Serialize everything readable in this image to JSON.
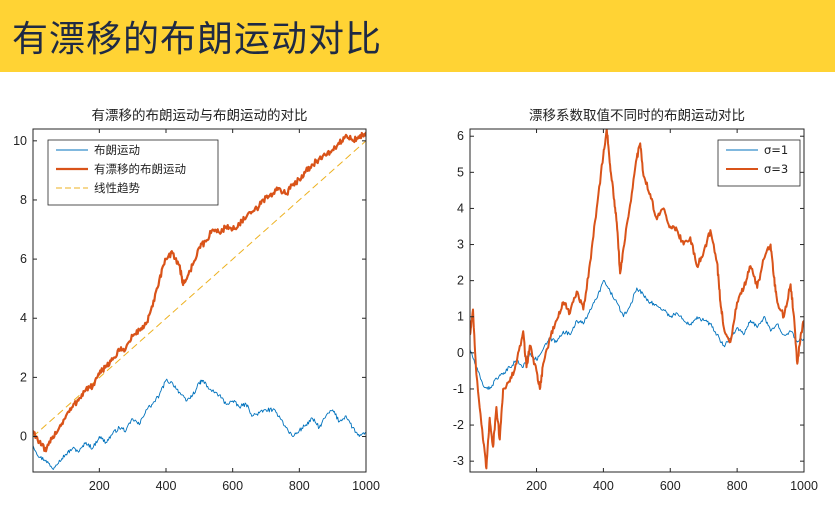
{
  "slide": {
    "title": "有漂移的布朗运动对比"
  },
  "chart_data": [
    {
      "type": "line",
      "title": "有漂移的布朗运动与布朗运动的对比",
      "xlabel": "",
      "ylabel": "",
      "xlim": [
        1,
        1000
      ],
      "ylim": [
        -1.2,
        10.4
      ],
      "xticks": [
        200,
        400,
        600,
        800,
        1000
      ],
      "yticks": [
        0,
        2,
        4,
        6,
        8,
        10
      ],
      "legend": "top-left",
      "grid": false,
      "series": [
        {
          "name": "布朗运动",
          "color": "#0072bd",
          "width": 0.9,
          "points": [
            [
              1,
              -0.3
            ],
            [
              20,
              -0.7
            ],
            [
              40,
              -0.8
            ],
            [
              60,
              -1.1
            ],
            [
              80,
              -0.8
            ],
            [
              100,
              -0.6
            ],
            [
              120,
              -0.4
            ],
            [
              140,
              -0.5
            ],
            [
              160,
              -0.2
            ],
            [
              180,
              -0.4
            ],
            [
              200,
              0.0
            ],
            [
              220,
              -0.2
            ],
            [
              240,
              0.1
            ],
            [
              260,
              0.3
            ],
            [
              280,
              0.2
            ],
            [
              300,
              0.6
            ],
            [
              320,
              0.4
            ],
            [
              340,
              0.9
            ],
            [
              360,
              1.1
            ],
            [
              380,
              1.4
            ],
            [
              400,
              1.9
            ],
            [
              420,
              1.8
            ],
            [
              440,
              1.5
            ],
            [
              460,
              1.2
            ],
            [
              480,
              1.4
            ],
            [
              500,
              1.8
            ],
            [
              510,
              1.9
            ],
            [
              530,
              1.6
            ],
            [
              560,
              1.4
            ],
            [
              580,
              1.1
            ],
            [
              600,
              1.2
            ],
            [
              620,
              1.0
            ],
            [
              640,
              1.1
            ],
            [
              660,
              0.7
            ],
            [
              680,
              0.8
            ],
            [
              700,
              0.9
            ],
            [
              720,
              0.9
            ],
            [
              740,
              0.7
            ],
            [
              760,
              0.3
            ],
            [
              780,
              0.0
            ],
            [
              800,
              0.2
            ],
            [
              820,
              0.4
            ],
            [
              840,
              0.6
            ],
            [
              860,
              0.3
            ],
            [
              880,
              0.7
            ],
            [
              900,
              0.9
            ],
            [
              920,
              0.5
            ],
            [
              940,
              0.7
            ],
            [
              960,
              0.3
            ],
            [
              980,
              0.0
            ],
            [
              1000,
              0.1
            ]
          ]
        },
        {
          "name": "有漂移的布朗运动",
          "color": "#d95319",
          "width": 2.2,
          "points": [
            [
              1,
              0.2
            ],
            [
              20,
              -0.2
            ],
            [
              40,
              -0.5
            ],
            [
              60,
              0.0
            ],
            [
              80,
              0.3
            ],
            [
              100,
              0.7
            ],
            [
              120,
              1.0
            ],
            [
              140,
              1.3
            ],
            [
              160,
              1.6
            ],
            [
              180,
              1.7
            ],
            [
              200,
              2.1
            ],
            [
              220,
              2.4
            ],
            [
              240,
              2.6
            ],
            [
              260,
              2.9
            ],
            [
              280,
              3.0
            ],
            [
              300,
              3.4
            ],
            [
              320,
              3.6
            ],
            [
              340,
              3.8
            ],
            [
              360,
              4.4
            ],
            [
              380,
              5.3
            ],
            [
              400,
              6.0
            ],
            [
              420,
              6.2
            ],
            [
              440,
              5.8
            ],
            [
              450,
              5.2
            ],
            [
              460,
              5.3
            ],
            [
              480,
              5.8
            ],
            [
              500,
              6.4
            ],
            [
              520,
              6.6
            ],
            [
              540,
              7.0
            ],
            [
              560,
              6.9
            ],
            [
              580,
              7.1
            ],
            [
              600,
              7.0
            ],
            [
              620,
              7.2
            ],
            [
              640,
              7.4
            ],
            [
              660,
              7.6
            ],
            [
              680,
              7.8
            ],
            [
              700,
              8.1
            ],
            [
              720,
              8.2
            ],
            [
              740,
              8.4
            ],
            [
              760,
              8.2
            ],
            [
              780,
              8.5
            ],
            [
              800,
              8.7
            ],
            [
              820,
              9.0
            ],
            [
              840,
              9.2
            ],
            [
              860,
              9.4
            ],
            [
              880,
              9.5
            ],
            [
              900,
              9.7
            ],
            [
              920,
              9.9
            ],
            [
              940,
              10.2
            ],
            [
              960,
              10.0
            ],
            [
              980,
              10.1
            ],
            [
              1000,
              10.3
            ]
          ]
        },
        {
          "name": "线性趋势",
          "color": "#edb120",
          "width": 1.0,
          "dash": true,
          "points": [
            [
              1,
              0.0
            ],
            [
              1000,
              10.0
            ]
          ]
        }
      ]
    },
    {
      "type": "line",
      "title": "漂移系数取值不同时的布朗运动对比",
      "xlabel": "",
      "ylabel": "",
      "xlim": [
        1,
        1000
      ],
      "ylim": [
        -3.3,
        6.2
      ],
      "xticks": [
        200,
        400,
        600,
        800,
        1000
      ],
      "yticks": [
        -3,
        -2,
        -1,
        0,
        1,
        2,
        3,
        4,
        5,
        6
      ],
      "legend": "top-right",
      "grid": false,
      "series": [
        {
          "name": "σ=1",
          "color": "#0072bd",
          "width": 0.9,
          "points": [
            [
              1,
              0.1
            ],
            [
              20,
              -0.4
            ],
            [
              40,
              -0.9
            ],
            [
              60,
              -1.0
            ],
            [
              80,
              -0.7
            ],
            [
              100,
              -0.6
            ],
            [
              120,
              -0.4
            ],
            [
              140,
              -0.2
            ],
            [
              160,
              -0.4
            ],
            [
              180,
              0.0
            ],
            [
              200,
              -0.2
            ],
            [
              220,
              0.1
            ],
            [
              240,
              0.4
            ],
            [
              260,
              0.3
            ],
            [
              280,
              0.6
            ],
            [
              300,
              0.5
            ],
            [
              320,
              0.9
            ],
            [
              340,
              0.8
            ],
            [
              360,
              1.2
            ],
            [
              380,
              1.5
            ],
            [
              400,
              2.0
            ],
            [
              420,
              1.7
            ],
            [
              440,
              1.4
            ],
            [
              460,
              1.0
            ],
            [
              480,
              1.3
            ],
            [
              500,
              1.8
            ],
            [
              520,
              1.6
            ],
            [
              540,
              1.4
            ],
            [
              560,
              1.3
            ],
            [
              580,
              1.2
            ],
            [
              600,
              1.0
            ],
            [
              620,
              1.1
            ],
            [
              640,
              0.9
            ],
            [
              660,
              0.8
            ],
            [
              680,
              1.0
            ],
            [
              700,
              0.9
            ],
            [
              720,
              0.8
            ],
            [
              740,
              0.5
            ],
            [
              760,
              0.2
            ],
            [
              780,
              0.4
            ],
            [
              800,
              0.7
            ],
            [
              820,
              0.5
            ],
            [
              840,
              0.9
            ],
            [
              860,
              0.7
            ],
            [
              880,
              1.0
            ],
            [
              900,
              0.6
            ],
            [
              920,
              0.8
            ],
            [
              940,
              0.5
            ],
            [
              960,
              0.6
            ],
            [
              980,
              0.3
            ],
            [
              1000,
              0.4
            ]
          ]
        },
        {
          "name": "σ=3",
          "color": "#d95319",
          "width": 2.0,
          "points": [
            [
              1,
              0.5
            ],
            [
              10,
              1.2
            ],
            [
              20,
              -0.6
            ],
            [
              40,
              -2.4
            ],
            [
              50,
              -3.2
            ],
            [
              60,
              -1.8
            ],
            [
              70,
              -2.6
            ],
            [
              80,
              -1.5
            ],
            [
              90,
              -2.4
            ],
            [
              100,
              -1.0
            ],
            [
              120,
              -0.8
            ],
            [
              140,
              -0.3
            ],
            [
              160,
              0.6
            ],
            [
              170,
              -0.4
            ],
            [
              180,
              0.2
            ],
            [
              200,
              -0.5
            ],
            [
              210,
              -1.0
            ],
            [
              220,
              -0.3
            ],
            [
              240,
              0.4
            ],
            [
              260,
              0.9
            ],
            [
              280,
              1.4
            ],
            [
              300,
              1.1
            ],
            [
              320,
              1.7
            ],
            [
              340,
              1.2
            ],
            [
              360,
              2.5
            ],
            [
              380,
              4.0
            ],
            [
              400,
              5.5
            ],
            [
              410,
              6.2
            ],
            [
              420,
              5.2
            ],
            [
              430,
              4.4
            ],
            [
              440,
              3.6
            ],
            [
              450,
              2.2
            ],
            [
              460,
              2.9
            ],
            [
              480,
              4.1
            ],
            [
              500,
              5.4
            ],
            [
              510,
              5.8
            ],
            [
              520,
              4.9
            ],
            [
              540,
              4.4
            ],
            [
              560,
              3.7
            ],
            [
              580,
              4.0
            ],
            [
              600,
              3.5
            ],
            [
              620,
              3.4
            ],
            [
              640,
              3.0
            ],
            [
              660,
              3.2
            ],
            [
              680,
              2.4
            ],
            [
              700,
              2.8
            ],
            [
              720,
              3.4
            ],
            [
              740,
              2.5
            ],
            [
              750,
              1.4
            ],
            [
              760,
              0.7
            ],
            [
              780,
              0.3
            ],
            [
              800,
              1.4
            ],
            [
              820,
              1.8
            ],
            [
              840,
              2.4
            ],
            [
              860,
              1.8
            ],
            [
              880,
              2.6
            ],
            [
              900,
              3.0
            ],
            [
              910,
              2.1
            ],
            [
              920,
              1.4
            ],
            [
              940,
              1.0
            ],
            [
              960,
              1.9
            ],
            [
              970,
              1.0
            ],
            [
              980,
              -0.3
            ],
            [
              990,
              0.5
            ],
            [
              1000,
              0.9
            ]
          ]
        }
      ]
    }
  ]
}
